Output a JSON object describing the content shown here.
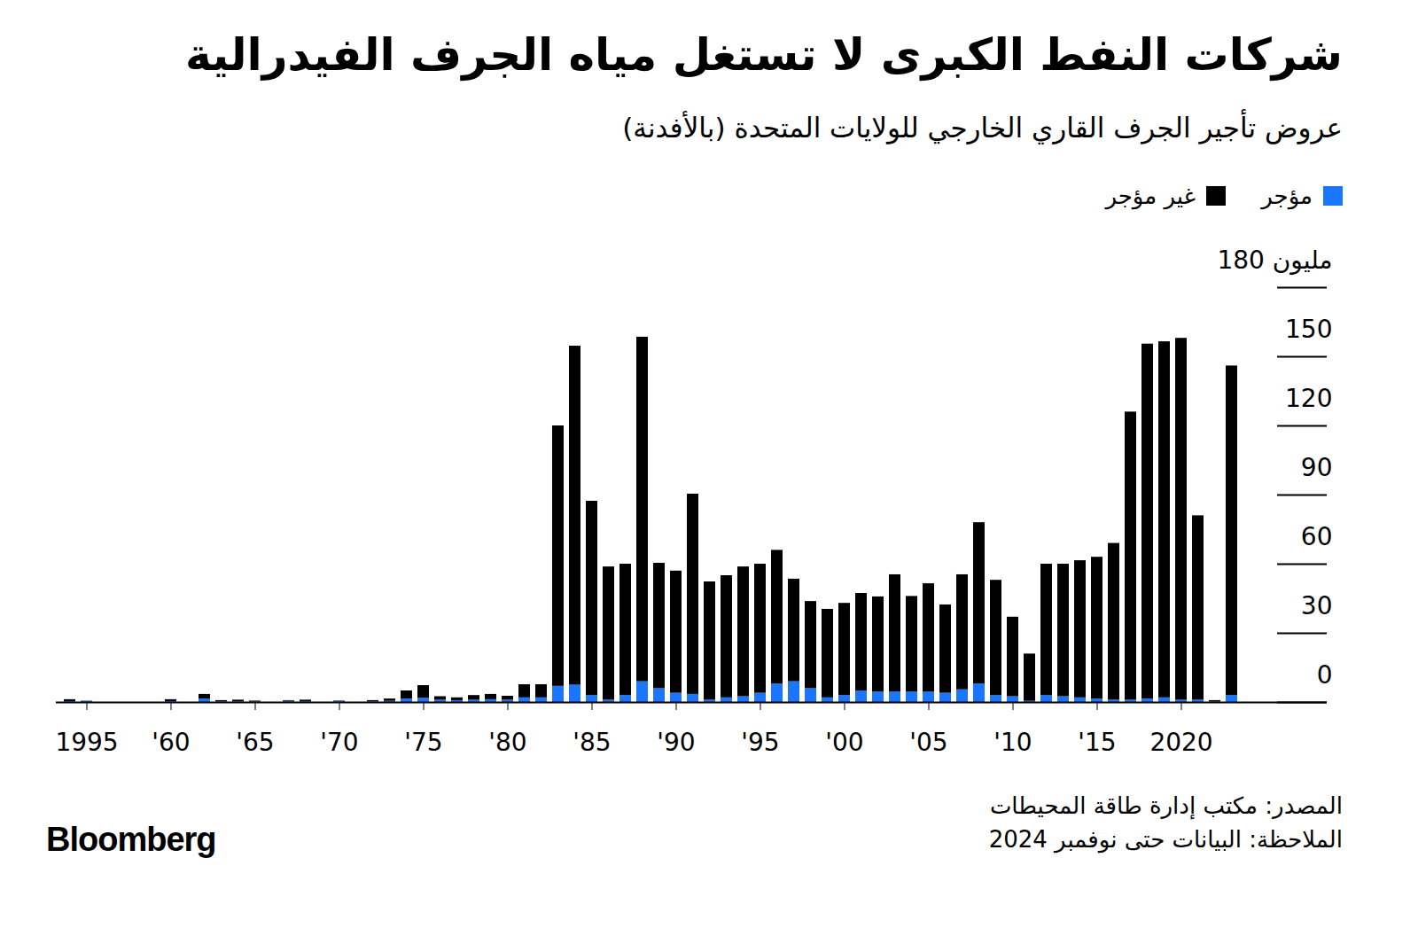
{
  "chart_data": {
    "type": "bar",
    "stacked": true,
    "title": "شركات النفط الكبرى لا تستغل مياه الجرف الفيدرالية",
    "subtitle": "عروض تأجير الجرف القاري الخارجي للولايات المتحدة (بالأفدنة)",
    "source": "المصدر: مكتب إدارة طاقة المحيطات",
    "note": "الملاحظة: البيانات حتى نوفمبر 2024",
    "brand": "Bloomberg",
    "categories": [
      null,
      "1995",
      null,
      null,
      null,
      null,
      "'60",
      null,
      null,
      null,
      null,
      "'65",
      null,
      null,
      null,
      null,
      "'70",
      null,
      null,
      null,
      null,
      "'75",
      null,
      null,
      null,
      null,
      "'80",
      null,
      null,
      null,
      null,
      "'85",
      null,
      null,
      null,
      null,
      "'90",
      null,
      null,
      null,
      null,
      "'95",
      null,
      null,
      null,
      null,
      "'00",
      null,
      null,
      null,
      null,
      "'05",
      null,
      null,
      null,
      null,
      "'10",
      null,
      null,
      null,
      null,
      "'15",
      null,
      null,
      null,
      null,
      "2020",
      null,
      null,
      null
    ],
    "series": [
      {
        "name": "مؤجر",
        "color": "#1a75ff",
        "values": [
          0.4,
          0.5,
          0,
          0,
          0,
          0,
          0.4,
          0,
          1.5,
          0.3,
          0.3,
          0.2,
          0,
          0.5,
          0.4,
          0,
          0.4,
          0,
          0.3,
          0.5,
          1.5,
          1.8,
          1,
          0.8,
          1,
          1.2,
          1,
          2,
          2,
          7,
          7.5,
          3,
          1,
          3,
          9,
          6,
          4,
          3.5,
          1,
          2,
          2.5,
          4,
          8,
          9,
          6,
          2,
          3,
          5,
          4.5,
          4.5,
          4.5,
          4.5,
          4,
          5.5,
          8,
          3,
          2.5,
          0.5,
          3,
          2.5,
          2,
          1.5,
          1,
          1,
          1.5,
          2,
          1,
          1,
          0.2,
          3
        ]
      },
      {
        "name": "غير مؤجر",
        "color": "#000000",
        "values": [
          0.8,
          0.1,
          0,
          0,
          0,
          0,
          0.8,
          0,
          2,
          0.5,
          0.7,
          0.4,
          0,
          0.3,
          0.6,
          0,
          0.2,
          0,
          0.5,
          1,
          3.5,
          5.5,
          1.5,
          1.2,
          2,
          2.3,
          1.7,
          5.7,
          5.7,
          113,
          147.1,
          84.3,
          57.8,
          57,
          149.5,
          54.4,
          53,
          86.9,
          51.3,
          53,
          56.3,
          56,
          58,
          44.5,
          37.8,
          38.4,
          40,
          42.3,
          41.3,
          50.9,
          41.5,
          47,
          38.3,
          49.9,
          70,
          50,
          34.5,
          20.5,
          57,
          57.5,
          59.5,
          61.5,
          68,
          125,
          154,
          154.5,
          157,
          80,
          0.6,
          143
        ]
      }
    ],
    "ylim": [
      0,
      180
    ],
    "yticks": [
      0,
      30,
      60,
      90,
      120,
      150,
      {
        "value": 180,
        "label": "180 مليون"
      }
    ],
    "legend": "top"
  }
}
